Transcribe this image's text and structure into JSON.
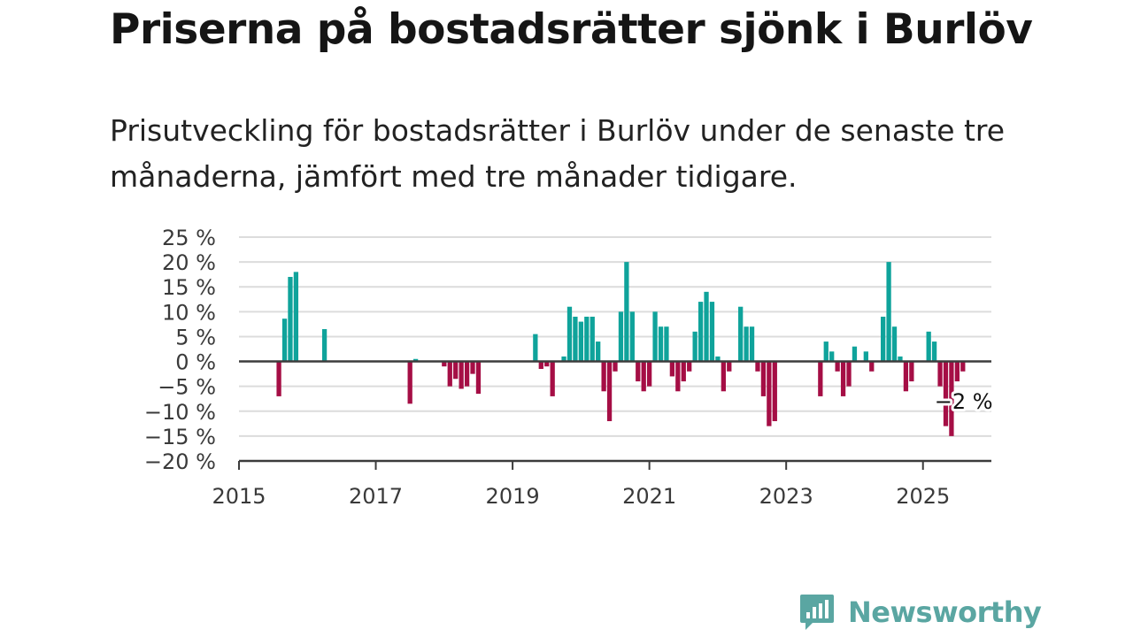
{
  "title": "Priserna på bostadsrätter sjönk i Burlöv",
  "subtitle": "Prisutveckling för bostadsrätter i Burlöv under de senaste tre månaderna, jämfört med tre månader tidigare.",
  "brand": {
    "name": "Newsworthy",
    "color": "#5aa6a2",
    "icon": "newsworthy-logo-icon"
  },
  "colors": {
    "positive": "#0fa39b",
    "negative": "#a50e45",
    "grid": "#dcdcdc",
    "axis": "#3c3c3c"
  },
  "chart_data": {
    "type": "bar",
    "x_unit": "months since 2015-01",
    "x_ticks": [
      {
        "x": 0,
        "label": "2015"
      },
      {
        "x": 24,
        "label": "2017"
      },
      {
        "x": 48,
        "label": "2019"
      },
      {
        "x": 72,
        "label": "2021"
      },
      {
        "x": 96,
        "label": "2023"
      },
      {
        "x": 120,
        "label": "2025"
      }
    ],
    "xlim": [
      0,
      132
    ],
    "ylim": [
      -20,
      25
    ],
    "y_ticks": [
      {
        "v": 25,
        "label": "25 %"
      },
      {
        "v": 20,
        "label": "20 %"
      },
      {
        "v": 15,
        "label": "15 %"
      },
      {
        "v": 10,
        "label": "10 %"
      },
      {
        "v": 5,
        "label": "5 %"
      },
      {
        "v": 0,
        "label": "0 %"
      },
      {
        "v": -5,
        "label": "−5 %"
      },
      {
        "v": -10,
        "label": "−10 %"
      },
      {
        "v": -15,
        "label": "−15 %"
      },
      {
        "v": -20,
        "label": "−20 %"
      }
    ],
    "points": [
      {
        "x": 7,
        "y": -7
      },
      {
        "x": 8,
        "y": 8.6
      },
      {
        "x": 9,
        "y": 17
      },
      {
        "x": 10,
        "y": 18
      },
      {
        "x": 15,
        "y": 6.5
      },
      {
        "x": 30,
        "y": -8.5
      },
      {
        "x": 31,
        "y": 0.5
      },
      {
        "x": 36,
        "y": -1
      },
      {
        "x": 37,
        "y": -5
      },
      {
        "x": 38,
        "y": -3.5
      },
      {
        "x": 39,
        "y": -5.5
      },
      {
        "x": 40,
        "y": -5
      },
      {
        "x": 41,
        "y": -2.5
      },
      {
        "x": 42,
        "y": -6.5
      },
      {
        "x": 52,
        "y": 5.5
      },
      {
        "x": 53,
        "y": -1.5
      },
      {
        "x": 54,
        "y": -1
      },
      {
        "x": 55,
        "y": -7
      },
      {
        "x": 57,
        "y": 1
      },
      {
        "x": 58,
        "y": 11
      },
      {
        "x": 59,
        "y": 9
      },
      {
        "x": 60,
        "y": 8
      },
      {
        "x": 61,
        "y": 9
      },
      {
        "x": 62,
        "y": 9
      },
      {
        "x": 63,
        "y": 4
      },
      {
        "x": 64,
        "y": -6
      },
      {
        "x": 65,
        "y": -12
      },
      {
        "x": 66,
        "y": -2
      },
      {
        "x": 67,
        "y": 10
      },
      {
        "x": 68,
        "y": 20
      },
      {
        "x": 69,
        "y": 10
      },
      {
        "x": 70,
        "y": -4
      },
      {
        "x": 71,
        "y": -6
      },
      {
        "x": 72,
        "y": -5
      },
      {
        "x": 73,
        "y": 10
      },
      {
        "x": 74,
        "y": 7
      },
      {
        "x": 75,
        "y": 7
      },
      {
        "x": 76,
        "y": -3
      },
      {
        "x": 77,
        "y": -6
      },
      {
        "x": 78,
        "y": -4
      },
      {
        "x": 79,
        "y": -2
      },
      {
        "x": 80,
        "y": 6
      },
      {
        "x": 81,
        "y": 12
      },
      {
        "x": 82,
        "y": 14
      },
      {
        "x": 83,
        "y": 12
      },
      {
        "x": 84,
        "y": 1
      },
      {
        "x": 85,
        "y": -6
      },
      {
        "x": 86,
        "y": -2
      },
      {
        "x": 88,
        "y": 11
      },
      {
        "x": 89,
        "y": 7
      },
      {
        "x": 90,
        "y": 7
      },
      {
        "x": 91,
        "y": -2
      },
      {
        "x": 92,
        "y": -7
      },
      {
        "x": 93,
        "y": -13
      },
      {
        "x": 94,
        "y": -12
      },
      {
        "x": 102,
        "y": -7
      },
      {
        "x": 103,
        "y": 4
      },
      {
        "x": 104,
        "y": 2
      },
      {
        "x": 105,
        "y": -2
      },
      {
        "x": 106,
        "y": -7
      },
      {
        "x": 107,
        "y": -5
      },
      {
        "x": 108,
        "y": 3
      },
      {
        "x": 110,
        "y": 2
      },
      {
        "x": 111,
        "y": -2
      },
      {
        "x": 113,
        "y": 9
      },
      {
        "x": 114,
        "y": 20
      },
      {
        "x": 115,
        "y": 7
      },
      {
        "x": 116,
        "y": 1
      },
      {
        "x": 117,
        "y": -6
      },
      {
        "x": 118,
        "y": -4
      },
      {
        "x": 121,
        "y": 6
      },
      {
        "x": 122,
        "y": 4
      },
      {
        "x": 123,
        "y": -5
      },
      {
        "x": 124,
        "y": -13
      },
      {
        "x": 125,
        "y": -15
      },
      {
        "x": 126,
        "y": -4
      },
      {
        "x": 127,
        "y": -2
      }
    ],
    "annotation": {
      "x": 127,
      "y": -2,
      "label": "−2 %"
    }
  }
}
